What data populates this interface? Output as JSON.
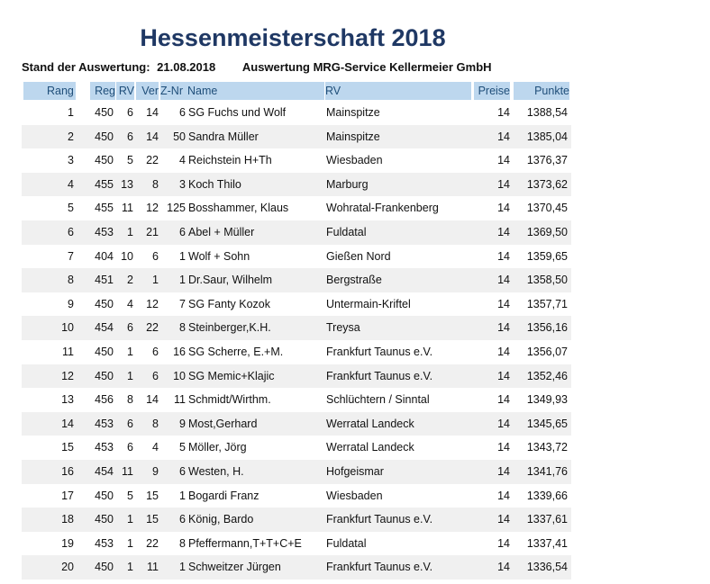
{
  "title": "Hessenmeisterschaft 2018",
  "subtitle": {
    "label": "Stand der Auswertung:",
    "date": "21.08.2018",
    "by": "Auswertung MRG-Service Kellermeier GmbH"
  },
  "headers": {
    "rang": "Rang",
    "reg": "Reg",
    "rv": "RV",
    "ver": "Ver",
    "znr": "Z-Nr",
    "name": "Name",
    "rv_name": "RV",
    "preise": "Preise",
    "punkte": "Punkte"
  },
  "rows": [
    {
      "rang": "1",
      "reg": "450",
      "rv": "6",
      "ver": "14",
      "znr": "6",
      "name": "SG Fuchs und Wolf",
      "rv_name": "Mainspitze",
      "preise": "14",
      "punkte": "1388,54"
    },
    {
      "rang": "2",
      "reg": "450",
      "rv": "6",
      "ver": "14",
      "znr": "50",
      "name": "Sandra Müller",
      "rv_name": "Mainspitze",
      "preise": "14",
      "punkte": "1385,04"
    },
    {
      "rang": "3",
      "reg": "450",
      "rv": "5",
      "ver": "22",
      "znr": "4",
      "name": "Reichstein H+Th",
      "rv_name": "Wiesbaden",
      "preise": "14",
      "punkte": "1376,37"
    },
    {
      "rang": "4",
      "reg": "455",
      "rv": "13",
      "ver": "8",
      "znr": "3",
      "name": "Koch Thilo",
      "rv_name": "Marburg",
      "preise": "14",
      "punkte": "1373,62"
    },
    {
      "rang": "5",
      "reg": "455",
      "rv": "11",
      "ver": "12",
      "znr": "125",
      "name": "Bosshammer, Klaus",
      "rv_name": "Wohratal-Frankenberg",
      "preise": "14",
      "punkte": "1370,45"
    },
    {
      "rang": "6",
      "reg": "453",
      "rv": "1",
      "ver": "21",
      "znr": "6",
      "name": "Abel + Müller",
      "rv_name": "Fuldatal",
      "preise": "14",
      "punkte": "1369,50"
    },
    {
      "rang": "7",
      "reg": "404",
      "rv": "10",
      "ver": "6",
      "znr": "1",
      "name": "Wolf + Sohn",
      "rv_name": "Gießen Nord",
      "preise": "14",
      "punkte": "1359,65"
    },
    {
      "rang": "8",
      "reg": "451",
      "rv": "2",
      "ver": "1",
      "znr": "1",
      "name": "Dr.Saur, Wilhelm",
      "rv_name": "Bergstraße",
      "preise": "14",
      "punkte": "1358,50"
    },
    {
      "rang": "9",
      "reg": "450",
      "rv": "4",
      "ver": "12",
      "znr": "7",
      "name": "SG Fanty Kozok",
      "rv_name": "Untermain-Kriftel",
      "preise": "14",
      "punkte": "1357,71"
    },
    {
      "rang": "10",
      "reg": "454",
      "rv": "6",
      "ver": "22",
      "znr": "8",
      "name": "Steinberger,K.H.",
      "rv_name": "Treysa",
      "preise": "14",
      "punkte": "1356,16"
    },
    {
      "rang": "11",
      "reg": "450",
      "rv": "1",
      "ver": "6",
      "znr": "16",
      "name": "SG Scherre, E.+M.",
      "rv_name": "Frankfurt Taunus e.V.",
      "preise": "14",
      "punkte": "1356,07"
    },
    {
      "rang": "12",
      "reg": "450",
      "rv": "1",
      "ver": "6",
      "znr": "10",
      "name": "SG Memic+Klajic",
      "rv_name": "Frankfurt Taunus e.V.",
      "preise": "14",
      "punkte": "1352,46"
    },
    {
      "rang": "13",
      "reg": "456",
      "rv": "8",
      "ver": "14",
      "znr": "11",
      "name": "Schmidt/Wirthm.",
      "rv_name": "Schlüchtern / Sinntal",
      "preise": "14",
      "punkte": "1349,93"
    },
    {
      "rang": "14",
      "reg": "453",
      "rv": "6",
      "ver": "8",
      "znr": "9",
      "name": "Most,Gerhard",
      "rv_name": "Werratal Landeck",
      "preise": "14",
      "punkte": "1345,65"
    },
    {
      "rang": "15",
      "reg": "453",
      "rv": "6",
      "ver": "4",
      "znr": "5",
      "name": "Möller, Jörg",
      "rv_name": "Werratal Landeck",
      "preise": "14",
      "punkte": "1343,72"
    },
    {
      "rang": "16",
      "reg": "454",
      "rv": "11",
      "ver": "9",
      "znr": "6",
      "name": "Westen, H.",
      "rv_name": "Hofgeismar",
      "preise": "14",
      "punkte": "1341,76"
    },
    {
      "rang": "17",
      "reg": "450",
      "rv": "5",
      "ver": "15",
      "znr": "1",
      "name": "Bogardi Franz",
      "rv_name": "Wiesbaden",
      "preise": "14",
      "punkte": "1339,66"
    },
    {
      "rang": "18",
      "reg": "450",
      "rv": "1",
      "ver": "15",
      "znr": "6",
      "name": "König, Bardo",
      "rv_name": "Frankfurt Taunus e.V.",
      "preise": "14",
      "punkte": "1337,61"
    },
    {
      "rang": "19",
      "reg": "453",
      "rv": "1",
      "ver": "22",
      "znr": "8",
      "name": "Pfeffermann,T+T+C+E",
      "rv_name": "Fuldatal",
      "preise": "14",
      "punkte": "1337,41"
    },
    {
      "rang": "20",
      "reg": "450",
      "rv": "1",
      "ver": "11",
      "znr": "1",
      "name": "Schweitzer Jürgen",
      "rv_name": "Frankfurt Taunus e.V.",
      "preise": "14",
      "punkte": "1336,54"
    }
  ]
}
